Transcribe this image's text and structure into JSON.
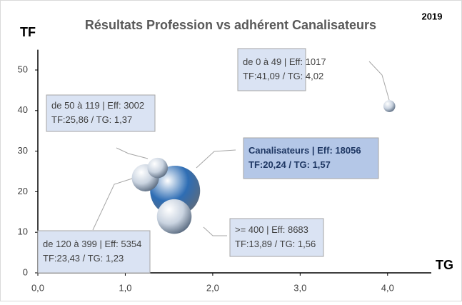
{
  "chart_data": {
    "type": "bubble",
    "title": "Résultats Profession vs adhérent Canalisateurs",
    "subtitle": "2019",
    "y_label": "TF",
    "x_label": "TG",
    "x": [
      4.02,
      1.37,
      1.57,
      1.56,
      1.23
    ],
    "values": [
      41.09,
      25.86,
      20.24,
      13.89,
      23.43
    ],
    "sizes": [
      1017,
      3002,
      18056,
      8683,
      5354
    ],
    "colors": [
      "#c9d3e0",
      "#c9d3e0",
      "#2e6db4",
      "#c9d3e0",
      "#c9d3e0"
    ],
    "value_labels": [
      [
        "de 0 à 49 | Eff: 1017",
        "TF:41,09 / TG: 4,02"
      ],
      [
        "de 50 à 119 | Eff: 3002",
        "TF:25,86 / TG: 1,37"
      ],
      [
        "Canalisateurs | Eff: 18056",
        "TF:20,24 / TG: 1,57"
      ],
      [
        ">= 400 | Eff: 8683",
        "TF:13,89 / TG: 1,56"
      ],
      [
        "de 120 à 399 | Eff: 5354",
        "TF:23,43 / TG: 1,23"
      ]
    ],
    "xlim": [
      0,
      4.5
    ],
    "xticks": [
      {
        "value": 0,
        "label": "0,0"
      },
      {
        "value": 1,
        "label": "1,0"
      },
      {
        "value": 2,
        "label": "2,0"
      },
      {
        "value": 3,
        "label": "3,0"
      },
      {
        "value": 4,
        "label": "4,0"
      }
    ],
    "ylim": [
      0,
      55
    ],
    "yticks": [
      0,
      10,
      20,
      30,
      40,
      50
    ],
    "grid": false
  }
}
